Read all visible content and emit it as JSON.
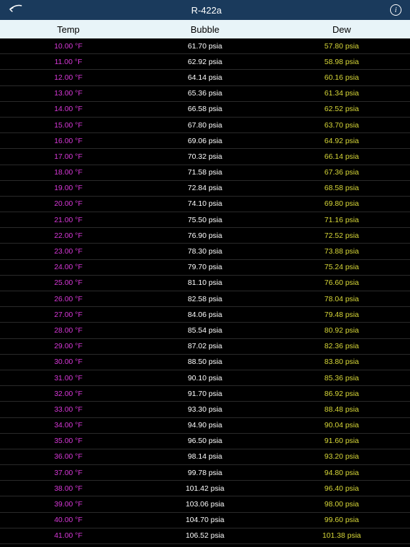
{
  "nav": {
    "title": "R-422a"
  },
  "headers": {
    "temp": "Temp",
    "bubble": "Bubble",
    "dew": "Dew"
  },
  "colors": {
    "nav_bg": "#1a3a5c",
    "header_bg": "#e8f4f8",
    "body_bg": "#000000",
    "temp_color": "#d838d8",
    "bubble_color": "#ffffff",
    "dew_color": "#d8d838",
    "border_color": "#2a2a2a"
  },
  "rows": [
    {
      "temp": "10.00 °F",
      "bubble": "61.70 psia",
      "dew": "57.80 psia"
    },
    {
      "temp": "11.00 °F",
      "bubble": "62.92 psia",
      "dew": "58.98 psia"
    },
    {
      "temp": "12.00 °F",
      "bubble": "64.14 psia",
      "dew": "60.16 psia"
    },
    {
      "temp": "13.00 °F",
      "bubble": "65.36 psia",
      "dew": "61.34 psia"
    },
    {
      "temp": "14.00 °F",
      "bubble": "66.58 psia",
      "dew": "62.52 psia"
    },
    {
      "temp": "15.00 °F",
      "bubble": "67.80 psia",
      "dew": "63.70 psia"
    },
    {
      "temp": "16.00 °F",
      "bubble": "69.06 psia",
      "dew": "64.92 psia"
    },
    {
      "temp": "17.00 °F",
      "bubble": "70.32 psia",
      "dew": "66.14 psia"
    },
    {
      "temp": "18.00 °F",
      "bubble": "71.58 psia",
      "dew": "67.36 psia"
    },
    {
      "temp": "19.00 °F",
      "bubble": "72.84 psia",
      "dew": "68.58 psia"
    },
    {
      "temp": "20.00 °F",
      "bubble": "74.10 psia",
      "dew": "69.80 psia"
    },
    {
      "temp": "21.00 °F",
      "bubble": "75.50 psia",
      "dew": "71.16 psia"
    },
    {
      "temp": "22.00 °F",
      "bubble": "76.90 psia",
      "dew": "72.52 psia"
    },
    {
      "temp": "23.00 °F",
      "bubble": "78.30 psia",
      "dew": "73.88 psia"
    },
    {
      "temp": "24.00 °F",
      "bubble": "79.70 psia",
      "dew": "75.24 psia"
    },
    {
      "temp": "25.00 °F",
      "bubble": "81.10 psia",
      "dew": "76.60 psia"
    },
    {
      "temp": "26.00 °F",
      "bubble": "82.58 psia",
      "dew": "78.04 psia"
    },
    {
      "temp": "27.00 °F",
      "bubble": "84.06 psia",
      "dew": "79.48 psia"
    },
    {
      "temp": "28.00 °F",
      "bubble": "85.54 psia",
      "dew": "80.92 psia"
    },
    {
      "temp": "29.00 °F",
      "bubble": "87.02 psia",
      "dew": "82.36 psia"
    },
    {
      "temp": "30.00 °F",
      "bubble": "88.50 psia",
      "dew": "83.80 psia"
    },
    {
      "temp": "31.00 °F",
      "bubble": "90.10 psia",
      "dew": "85.36 psia"
    },
    {
      "temp": "32.00 °F",
      "bubble": "91.70 psia",
      "dew": "86.92 psia"
    },
    {
      "temp": "33.00 °F",
      "bubble": "93.30 psia",
      "dew": "88.48 psia"
    },
    {
      "temp": "34.00 °F",
      "bubble": "94.90 psia",
      "dew": "90.04 psia"
    },
    {
      "temp": "35.00 °F",
      "bubble": "96.50 psia",
      "dew": "91.60 psia"
    },
    {
      "temp": "36.00 °F",
      "bubble": "98.14 psia",
      "dew": "93.20 psia"
    },
    {
      "temp": "37.00 °F",
      "bubble": "99.78 psia",
      "dew": "94.80 psia"
    },
    {
      "temp": "38.00 °F",
      "bubble": "101.42 psia",
      "dew": "96.40 psia"
    },
    {
      "temp": "39.00 °F",
      "bubble": "103.06 psia",
      "dew": "98.00 psia"
    },
    {
      "temp": "40.00 °F",
      "bubble": "104.70 psia",
      "dew": "99.60 psia"
    },
    {
      "temp": "41.00 °F",
      "bubble": "106.52 psia",
      "dew": "101.38 psia"
    }
  ]
}
